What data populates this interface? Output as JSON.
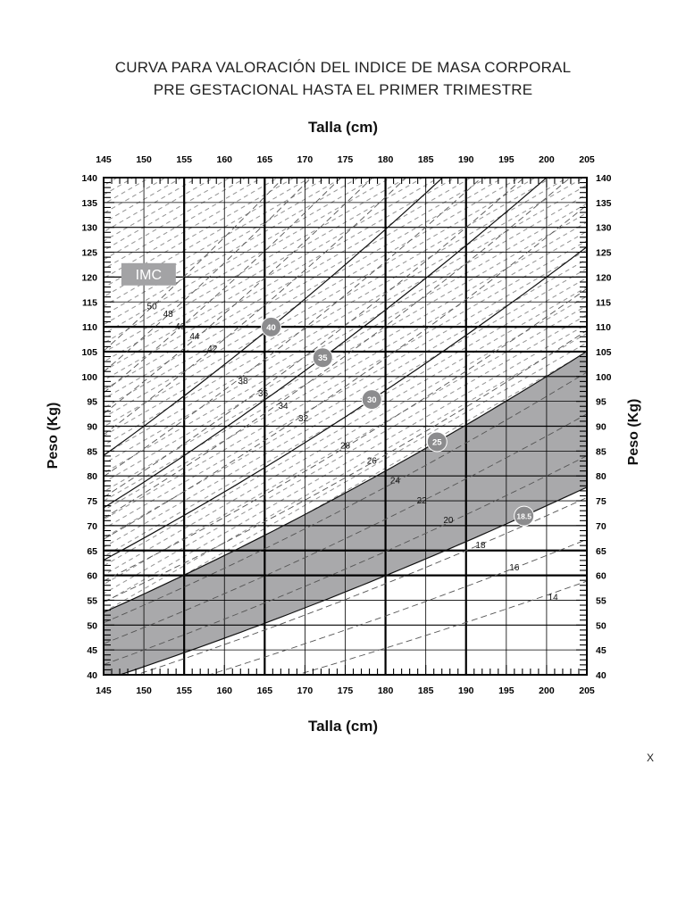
{
  "title_line1": "CURVA PARA VALORACIÓN DEL INDICE DE MASA CORPORAL",
  "title_line2": "PRE GESTACIONAL HASTA EL PRIMER TRIMESTRE",
  "corner_mark": "X",
  "colors": {
    "normal_band": "#a9a9ab",
    "grid": "#000000",
    "dashed": "#555555",
    "badge": "#8c8c8e",
    "imc_box": "#a3a3a5"
  },
  "chart_data": {
    "type": "line",
    "xlabel": "Talla (cm)",
    "ylabel": "Peso (Kg)",
    "xlim": [
      145,
      205
    ],
    "ylim": [
      40,
      140
    ],
    "x_ticks": [
      145,
      150,
      155,
      160,
      165,
      170,
      175,
      180,
      185,
      190,
      195,
      200,
      205
    ],
    "y_ticks": [
      40,
      45,
      50,
      55,
      60,
      65,
      70,
      75,
      80,
      85,
      90,
      95,
      100,
      105,
      110,
      115,
      120,
      125,
      130,
      135,
      140
    ],
    "legend_box": "IMC",
    "solid_bmi_curves": [
      40,
      35,
      30,
      25,
      18.5
    ],
    "solid_curve_labels": [
      "40",
      "35",
      "30",
      "25",
      "18.5"
    ],
    "dashed_bmi_curves": [
      14,
      16,
      18,
      20,
      22,
      24,
      26,
      28,
      32,
      34,
      36,
      38,
      42,
      44,
      46,
      48,
      50
    ],
    "dashed_curve_labels": [
      {
        "text": "50",
        "x": 151.0,
        "y": 113.5
      },
      {
        "text": "48",
        "x": 153.0,
        "y": 112.0
      },
      {
        "text": "46",
        "x": 154.5,
        "y": 109.5
      },
      {
        "text": "44",
        "x": 156.3,
        "y": 107.5
      },
      {
        "text": "42",
        "x": 158.5,
        "y": 105.0
      },
      {
        "text": "38",
        "x": 162.3,
        "y": 98.5
      },
      {
        "text": "36",
        "x": 164.8,
        "y": 96.0
      },
      {
        "text": "34",
        "x": 167.3,
        "y": 93.5
      },
      {
        "text": "32",
        "x": 169.8,
        "y": 91.0
      },
      {
        "text": "28",
        "x": 175.0,
        "y": 85.5
      },
      {
        "text": "26",
        "x": 178.3,
        "y": 82.5
      },
      {
        "text": "24",
        "x": 181.2,
        "y": 78.5
      },
      {
        "text": "22",
        "x": 184.5,
        "y": 74.5
      },
      {
        "text": "20",
        "x": 187.8,
        "y": 70.5
      },
      {
        "text": "18",
        "x": 191.8,
        "y": 65.5
      },
      {
        "text": "16",
        "x": 196.0,
        "y": 61.0
      },
      {
        "text": "14",
        "x": 200.8,
        "y": 55.0
      }
    ],
    "normal_range_imc": [
      18.5,
      25
    ]
  }
}
